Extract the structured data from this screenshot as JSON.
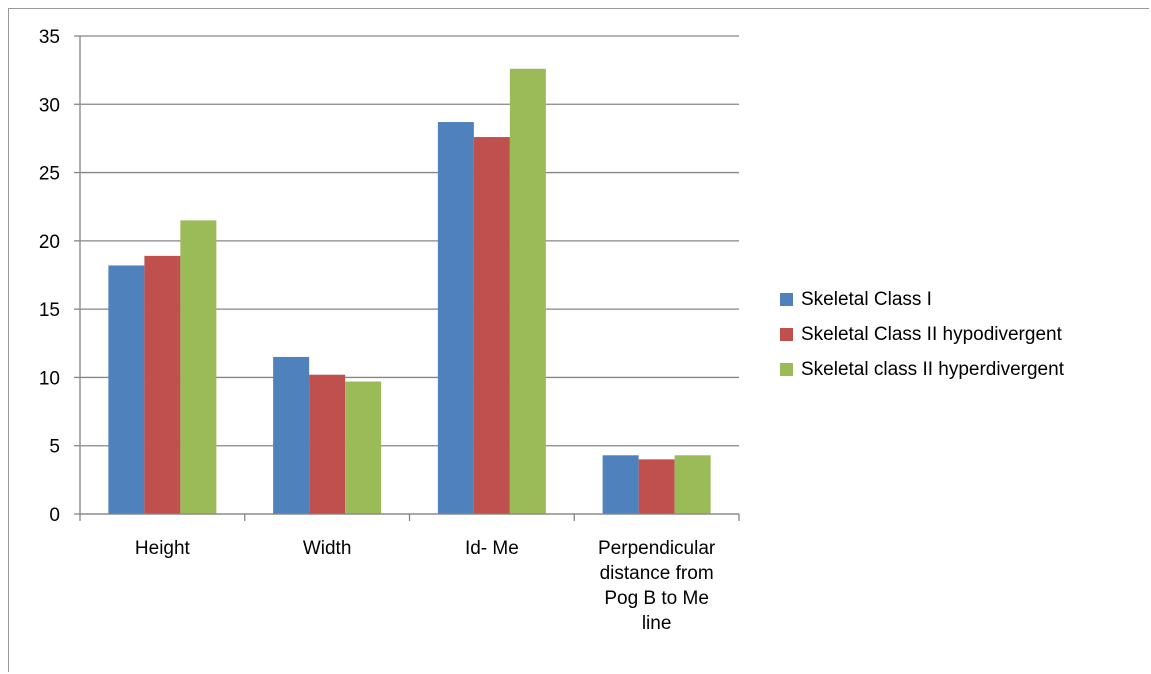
{
  "chart_data": {
    "type": "bar",
    "categories": [
      "Height",
      "Width",
      "Id- Me",
      "Perpendicular distance from Pog B to Me line"
    ],
    "category_lines": [
      [
        "Height"
      ],
      [
        "Width"
      ],
      [
        "Id- Me"
      ],
      [
        "Perpendicular",
        "distance from",
        "Pog B to Me",
        "line"
      ]
    ],
    "series": [
      {
        "name": "Skeletal Class I",
        "color": "#4F81BD",
        "values": [
          18.2,
          11.5,
          28.7,
          4.3
        ]
      },
      {
        "name": "Skeletal Class II hypodivergent",
        "color": "#C0504D",
        "values": [
          18.9,
          10.2,
          27.6,
          4.0
        ]
      },
      {
        "name": "Skeletal class II hyperdivergent",
        "color": "#9BBB59",
        "values": [
          21.5,
          9.7,
          32.6,
          4.3
        ]
      }
    ],
    "ylim": [
      0,
      35
    ],
    "yticks": [
      0,
      5,
      10,
      15,
      20,
      25,
      30,
      35
    ],
    "grid": true,
    "legend": "right",
    "title": "",
    "xlabel": "",
    "ylabel": ""
  }
}
